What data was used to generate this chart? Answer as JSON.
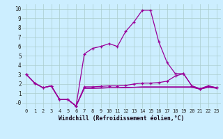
{
  "xlabel": "Windchill (Refroidissement éolien,°C)",
  "bg_color": "#cceeff",
  "line_color": "#990099",
  "grid_color": "#aacccc",
  "xlim": [
    -0.5,
    23.5
  ],
  "ylim": [
    -0.6,
    10.5
  ],
  "xticks": [
    0,
    1,
    2,
    3,
    4,
    5,
    6,
    7,
    8,
    9,
    10,
    11,
    12,
    13,
    14,
    15,
    16,
    17,
    18,
    19,
    20,
    21,
    22,
    23
  ],
  "yticks": [
    0,
    1,
    2,
    3,
    4,
    5,
    6,
    7,
    8,
    9,
    10
  ],
  "ytick_labels": [
    "-0",
    "1",
    "2",
    "3",
    "4",
    "5",
    "6",
    "7",
    "8",
    "9",
    "10"
  ],
  "line1_x": [
    0,
    1,
    2,
    3,
    4,
    5,
    6,
    7,
    8,
    9,
    10,
    11,
    12,
    13,
    14,
    15,
    16,
    17,
    18,
    19,
    20,
    21,
    22,
    23
  ],
  "line1_y": [
    3.0,
    2.1,
    1.6,
    1.8,
    0.35,
    0.35,
    -0.35,
    5.2,
    5.8,
    6.0,
    6.3,
    6.0,
    7.6,
    8.6,
    9.85,
    9.85,
    6.5,
    4.3,
    3.1,
    3.1,
    1.8,
    1.5,
    1.8,
    1.6
  ],
  "line2_x": [
    0,
    1,
    2,
    3,
    4,
    5,
    6,
    7,
    8,
    9,
    10,
    11,
    12,
    13,
    14,
    15,
    16,
    17,
    18,
    19,
    20,
    21,
    22,
    23
  ],
  "line2_y": [
    3.0,
    2.1,
    1.6,
    1.8,
    0.35,
    0.35,
    -0.35,
    1.7,
    1.7,
    1.75,
    1.8,
    1.8,
    1.85,
    2.0,
    2.1,
    2.1,
    2.15,
    2.3,
    2.85,
    3.1,
    1.8,
    1.5,
    1.8,
    1.6
  ],
  "line3_x": [
    0,
    1,
    2,
    3,
    4,
    5,
    6,
    7,
    8,
    9,
    10,
    11,
    12,
    13,
    14,
    15,
    16,
    17,
    18,
    19,
    20,
    21,
    22,
    23
  ],
  "line3_y": [
    3.0,
    2.1,
    1.6,
    1.8,
    0.35,
    0.35,
    -0.35,
    1.55,
    1.55,
    1.6,
    1.6,
    1.6,
    1.65,
    1.65,
    1.7,
    1.7,
    1.7,
    1.7,
    1.7,
    1.7,
    1.7,
    1.45,
    1.7,
    1.55
  ],
  "line4_x": [
    0,
    1,
    2,
    3,
    4,
    5,
    6,
    7,
    8,
    9,
    10,
    11,
    12,
    13,
    14,
    15,
    16,
    17,
    18,
    19,
    20,
    21,
    22,
    23
  ],
  "line4_y": [
    3.0,
    2.1,
    1.6,
    1.8,
    0.35,
    0.35,
    -0.35,
    1.55,
    1.55,
    1.55,
    1.6,
    1.6,
    1.6,
    1.65,
    1.65,
    1.65,
    1.65,
    1.65,
    1.65,
    1.65,
    1.65,
    1.45,
    1.65,
    1.55
  ]
}
